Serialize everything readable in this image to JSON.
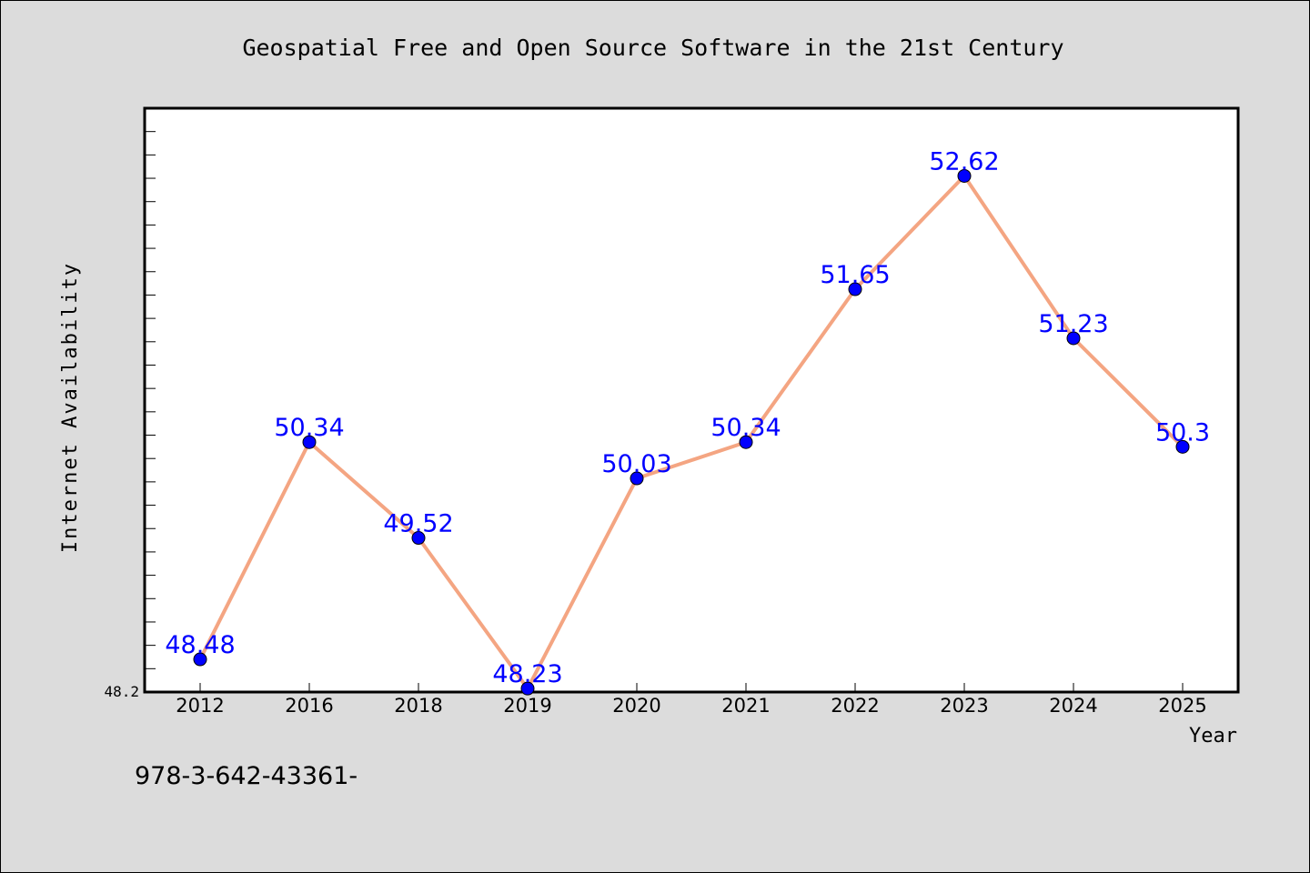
{
  "chart_data": {
    "type": "line",
    "title": "Geospatial Free and Open Source Software in the 21st Century",
    "xlabel": "Year",
    "ylabel": "Internet Availability",
    "categories": [
      "2012",
      "2016",
      "2018",
      "2019",
      "2020",
      "2021",
      "2022",
      "2023",
      "2024",
      "2025"
    ],
    "series": [
      {
        "values": [
          48.48,
          50.34,
          49.52,
          48.23,
          50.03,
          50.34,
          51.65,
          52.62,
          51.23,
          50.3
        ],
        "labels": [
          "48.48",
          "50.34",
          "49.52",
          "48.23",
          "50.03",
          "50.34",
          "51.65",
          "52.62",
          "51.23",
          "50.3"
        ]
      }
    ],
    "ylim": [
      48.2,
      53.2
    ],
    "y_tick_labels": [
      "48.2"
    ],
    "grid": false,
    "colors": {
      "line": "#f4a582",
      "marker": "#0000ff",
      "label": "#0000ff",
      "plot_background": "#ffffff",
      "page_background": "#dcdcdc"
    }
  },
  "footer_text": "978-3-642-43361-"
}
